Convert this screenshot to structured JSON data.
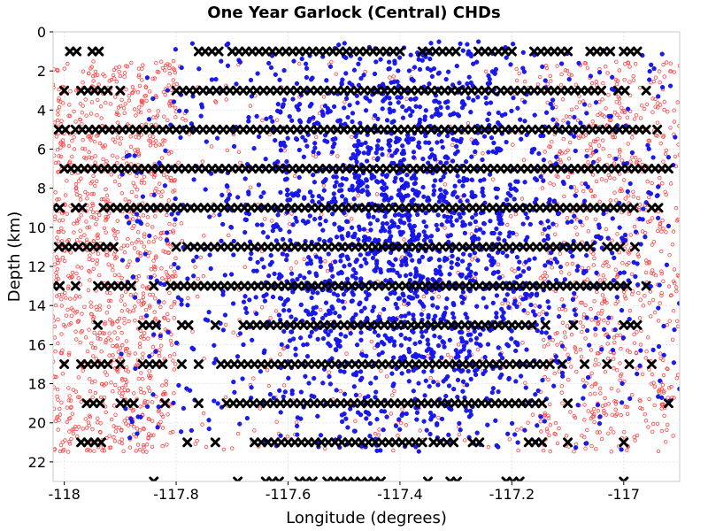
{
  "chart_data": {
    "type": "scatter",
    "title": "One Year Garlock (Central) CHDs",
    "xlabel": "Longitude (degrees)",
    "ylabel": "Depth (km)",
    "xlim": [
      -118.02,
      -116.9
    ],
    "ylim": [
      0,
      23
    ],
    "y_inverted": true,
    "grid": true,
    "xticks": [
      {
        "value": -118.0,
        "label": "-118"
      },
      {
        "value": -117.8,
        "label": "-117.8"
      },
      {
        "value": -117.6,
        "label": "-117.6"
      },
      {
        "value": -117.4,
        "label": "-117.4"
      },
      {
        "value": -117.2,
        "label": "-117.2"
      },
      {
        "value": -117.0,
        "label": "-117"
      }
    ],
    "yticks": [
      {
        "value": 0,
        "label": "0"
      },
      {
        "value": 2,
        "label": "2"
      },
      {
        "value": 4,
        "label": "4"
      },
      {
        "value": 6,
        "label": "6"
      },
      {
        "value": 8,
        "label": "8"
      },
      {
        "value": 10,
        "label": "10"
      },
      {
        "value": 12,
        "label": "12"
      },
      {
        "value": 14,
        "label": "14"
      },
      {
        "value": 16,
        "label": "16"
      },
      {
        "value": 18,
        "label": "18"
      },
      {
        "value": 20,
        "label": "20"
      },
      {
        "value": 22,
        "label": "22"
      }
    ],
    "series": [
      {
        "name": "background",
        "marker": "open-circle",
        "color": "#ff4040",
        "count": 2200,
        "lon_range": [
          -118.02,
          -116.9
        ],
        "depth_range": [
          1.5,
          21.5
        ],
        "concentration": "edges",
        "seed": 11
      },
      {
        "name": "central",
        "marker": "filled-circle",
        "color": "#1a1aff",
        "count": 2600,
        "lon_center": -117.4,
        "lon_spread": 0.16,
        "lon_range": [
          -117.9,
          -116.9
        ],
        "depth_range": [
          0.5,
          21.5
        ],
        "depth_center": 10.5,
        "depth_spread": 6.5,
        "seed": 29
      },
      {
        "name": "CHDs",
        "marker": "x",
        "color": "#000000",
        "spacing": 0.012,
        "rows": [
          {
            "depth": 1,
            "segments": [
              [
                -117.99,
                -117.97
              ],
              [
                -117.95,
                -117.93
              ],
              [
                -117.76,
                -117.72
              ],
              [
                -117.7,
                -117.4
              ],
              [
                -117.36,
                -117.29
              ],
              [
                -117.26,
                -117.2
              ],
              [
                -117.16,
                -117.09
              ],
              [
                -117.06,
                -117.02
              ],
              [
                -117.0,
                -116.97
              ]
            ]
          },
          {
            "depth": 3,
            "segments": [
              [
                -118.0,
                -117.99
              ],
              [
                -117.97,
                -117.92
              ],
              [
                -117.9,
                -117.89
              ],
              [
                -117.8,
                -117.23
              ],
              [
                -117.22,
                -117.03
              ],
              [
                -117.01,
                -116.99
              ],
              [
                -116.96,
                -116.95
              ]
            ]
          },
          {
            "depth": 5,
            "segments": [
              [
                -118.01,
                -117.99
              ],
              [
                -117.98,
                -116.96
              ],
              [
                -116.94,
                -116.93
              ]
            ]
          },
          {
            "depth": 7,
            "segments": [
              [
                -118.0,
                -116.91
              ]
            ]
          },
          {
            "depth": 9,
            "segments": [
              [
                -118.02,
                -118.0
              ],
              [
                -117.98,
                -117.96
              ],
              [
                -117.93,
                -116.98
              ],
              [
                -116.95,
                -116.93
              ]
            ]
          },
          {
            "depth": 11,
            "segments": [
              [
                -118.01,
                -117.97
              ],
              [
                -117.96,
                -117.91
              ],
              [
                -117.8,
                -117.79
              ],
              [
                -117.78,
                -117.06
              ],
              [
                -117.03,
                -117.0
              ],
              [
                -116.98,
                -116.97
              ]
            ]
          },
          {
            "depth": 13,
            "segments": [
              [
                -118.02,
                -118.0
              ],
              [
                -117.98,
                -117.97
              ],
              [
                -117.94,
                -117.88
              ],
              [
                -117.84,
                -117.83
              ],
              [
                -117.81,
                -116.99
              ],
              [
                -116.96,
                -116.95
              ]
            ]
          },
          {
            "depth": 15,
            "segments": [
              [
                -117.94,
                -117.93
              ],
              [
                -117.86,
                -117.83
              ],
              [
                -117.79,
                -117.77
              ],
              [
                -117.73,
                -117.72
              ],
              [
                -117.68,
                -117.16
              ],
              [
                -117.14,
                -117.13
              ],
              [
                -117.09,
                -117.08
              ],
              [
                -117.0,
                -116.97
              ]
            ]
          },
          {
            "depth": 17,
            "segments": [
              [
                -118.0,
                -117.99
              ],
              [
                -117.97,
                -117.92
              ],
              [
                -117.9,
                -117.89
              ],
              [
                -117.86,
                -117.82
              ],
              [
                -117.79,
                -117.78
              ],
              [
                -117.76,
                -117.75
              ],
              [
                -117.72,
                -117.13
              ],
              [
                -117.11,
                -117.1
              ],
              [
                -117.07,
                -117.06
              ],
              [
                -117.03,
                -117.02
              ],
              [
                -116.99,
                -116.98
              ],
              [
                -116.95,
                -116.94
              ]
            ]
          },
          {
            "depth": 19,
            "segments": [
              [
                -117.96,
                -117.93
              ],
              [
                -117.9,
                -117.87
              ],
              [
                -117.82,
                -117.81
              ],
              [
                -117.76,
                -117.75
              ],
              [
                -117.71,
                -117.14
              ],
              [
                -117.1,
                -117.09
              ],
              [
                -116.92,
                -116.91
              ]
            ]
          },
          {
            "depth": 21,
            "segments": [
              [
                -117.97,
                -117.93
              ],
              [
                -117.78,
                -117.77
              ],
              [
                -117.73,
                -117.72
              ],
              [
                -117.66,
                -117.36
              ],
              [
                -117.34,
                -117.3
              ],
              [
                -117.27,
                -117.25
              ],
              [
                -117.17,
                -117.14
              ],
              [
                -117.1,
                -117.09
              ],
              [
                -117.0,
                -116.99
              ]
            ]
          },
          {
            "depth": 23,
            "segments": [
              [
                -117.84,
                -117.83
              ],
              [
                -117.69,
                -117.68
              ],
              [
                -117.64,
                -117.61
              ],
              [
                -117.58,
                -117.55
              ],
              [
                -117.53,
                -117.43
              ],
              [
                -117.35,
                -117.34
              ],
              [
                -117.31,
                -117.29
              ],
              [
                -117.21,
                -117.18
              ],
              [
                -117.0,
                -116.99
              ]
            ]
          }
        ]
      }
    ]
  }
}
